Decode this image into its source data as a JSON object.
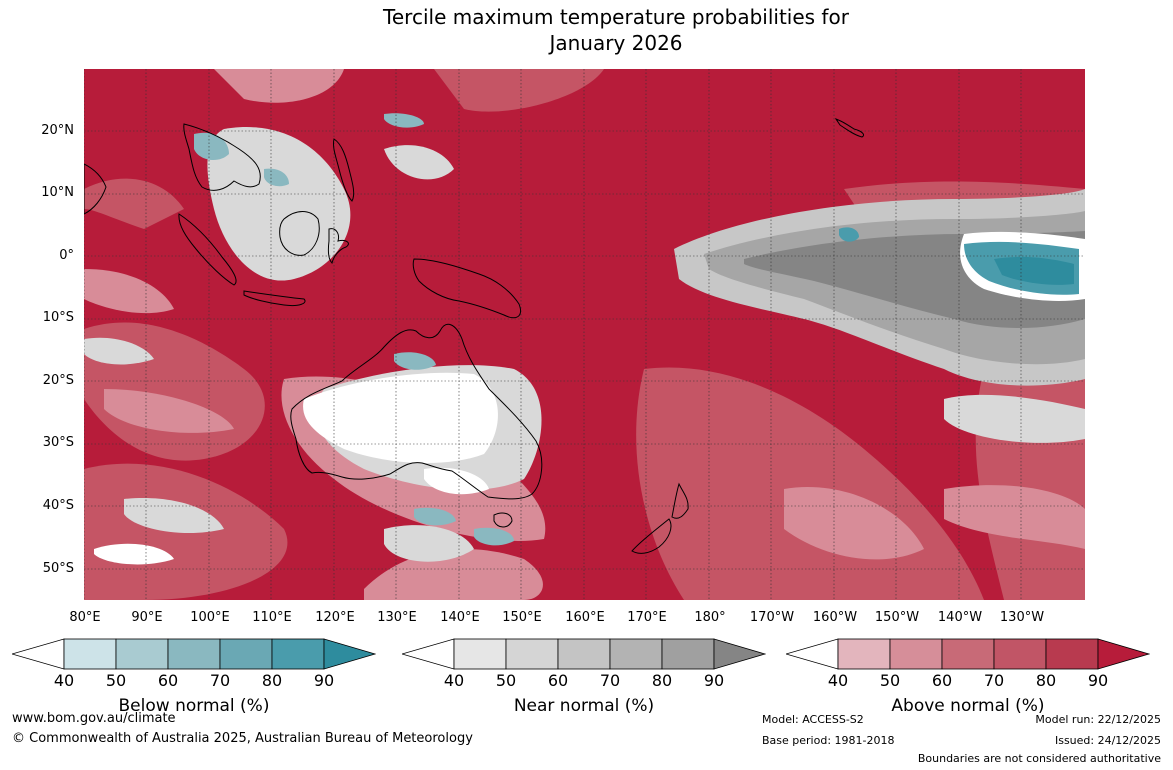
{
  "title_line1": "Tercile maximum temperature probabilities for",
  "title_line2": "January 2026",
  "map": {
    "lat_labels": [
      "20°N",
      "10°N",
      "0°",
      "10°S",
      "20°S",
      "30°S",
      "40°S",
      "50°S"
    ],
    "lon_labels": [
      "80°E",
      "90°E",
      "100°E",
      "110°E",
      "120°E",
      "130°E",
      "140°E",
      "150°E",
      "160°E",
      "170°E",
      "180°",
      "170°W",
      "160°W",
      "150°W",
      "140°W",
      "130°W"
    ]
  },
  "legends": [
    {
      "label": "Below normal (%)",
      "ticks": [
        "40",
        "50",
        "60",
        "70",
        "80",
        "90"
      ],
      "colors": [
        "#ffffff",
        "#cde3e8",
        "#a9cbd1",
        "#8ab8c0",
        "#6aa8b4",
        "#4a9cac",
        "#2e8c9e"
      ]
    },
    {
      "label": "Near normal (%)",
      "ticks": [
        "40",
        "50",
        "60",
        "70",
        "80",
        "90"
      ],
      "colors": [
        "#ffffff",
        "#e6e6e6",
        "#d5d5d5",
        "#c4c4c4",
        "#b3b3b3",
        "#a0a0a0",
        "#858585"
      ]
    },
    {
      "label": "Above normal (%)",
      "ticks": [
        "40",
        "50",
        "60",
        "70",
        "80",
        "90"
      ],
      "colors": [
        "#ffffff",
        "#e3b5bd",
        "#d68e99",
        "#c86a77",
        "#c15566",
        "#b83a4f",
        "#b71c3a"
      ]
    }
  ],
  "footer": {
    "website": "www.bom.gov.au/climate",
    "copyright": "© Commonwealth of Australia 2025, Australian Bureau of Meteorology",
    "model": "Model: ACCESS-S2",
    "base_period": "Base period: 1981-2018",
    "model_run": "Model run: 22/12/2025",
    "issued": "Issued: 24/12/2025",
    "disclaimer": "Boundaries are not considered authoritative"
  }
}
